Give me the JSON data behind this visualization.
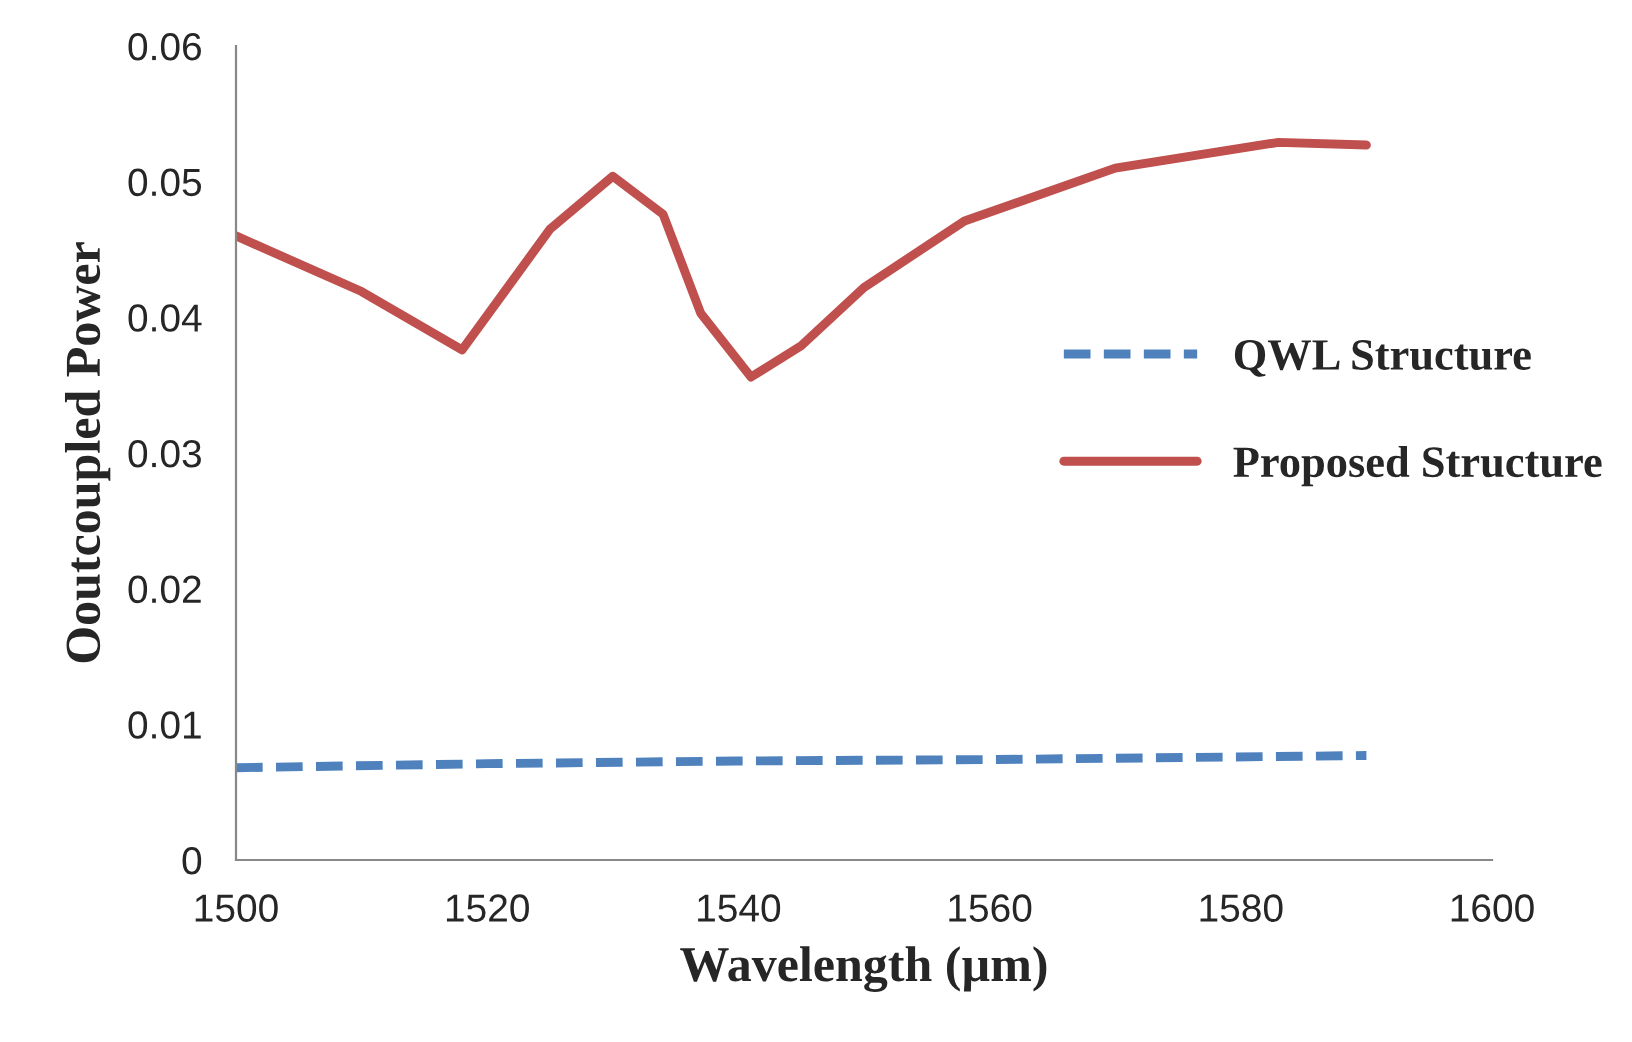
{
  "chart_data": {
    "type": "line",
    "xlabel": "Wavelength (µm)",
    "ylabel": "Ooutcoupled Power",
    "xlim": [
      1500,
      1600
    ],
    "xticks": [
      1500,
      1520,
      1540,
      1560,
      1580,
      1600
    ],
    "ylim": [
      0,
      0.06
    ],
    "yticks": [
      0,
      0.01,
      0.02,
      0.03,
      0.04,
      0.05,
      0.06
    ],
    "grid": false,
    "legend": "right",
    "series": [
      {
        "name": "QWL Structure",
        "color": "#4f81bd",
        "line_style": "dashed",
        "x": [
          1500,
          1520,
          1540,
          1560,
          1590
        ],
        "values": [
          0.0068,
          0.0071,
          0.0073,
          0.0074,
          0.0077
        ]
      },
      {
        "name": "Proposed Structure",
        "color": "#c0504d",
        "line_style": "solid",
        "x": [
          1500,
          1510,
          1518,
          1525,
          1530,
          1534,
          1537,
          1541,
          1545,
          1550,
          1558,
          1570,
          1583,
          1590
        ],
        "values": [
          0.046,
          0.0419,
          0.0376,
          0.0465,
          0.0504,
          0.0476,
          0.0403,
          0.0356,
          0.0379,
          0.0422,
          0.0471,
          0.051,
          0.0529,
          0.0527
        ]
      }
    ]
  }
}
